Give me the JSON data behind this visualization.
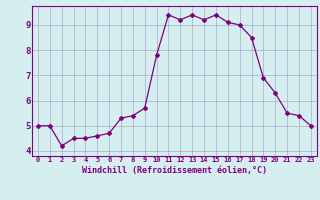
{
  "x": [
    0,
    1,
    2,
    3,
    4,
    5,
    6,
    7,
    8,
    9,
    10,
    11,
    12,
    13,
    14,
    15,
    16,
    17,
    18,
    19,
    20,
    21,
    22,
    23
  ],
  "y": [
    5.0,
    5.0,
    4.2,
    4.5,
    4.5,
    4.6,
    4.7,
    5.3,
    5.4,
    5.7,
    7.8,
    9.4,
    9.2,
    9.4,
    9.2,
    9.4,
    9.1,
    9.0,
    8.5,
    6.9,
    6.3,
    5.5,
    5.4,
    5.0
  ],
  "line_color": "#800080",
  "marker": "D",
  "marker_size": 2,
  "bg_color": "#d5eef0",
  "grid_color": "#aaaacc",
  "xlabel": "Windchill (Refroidissement éolien,°C)",
  "xlabel_color": "#800080",
  "tick_color": "#800080",
  "ylim": [
    3.8,
    9.75
  ],
  "xlim": [
    -0.5,
    23.5
  ],
  "yticks": [
    4,
    5,
    6,
    7,
    8,
    9
  ],
  "xticks": [
    0,
    1,
    2,
    3,
    4,
    5,
    6,
    7,
    8,
    9,
    10,
    11,
    12,
    13,
    14,
    15,
    16,
    17,
    18,
    19,
    20,
    21,
    22,
    23
  ],
  "xtick_labels": [
    "0",
    "1",
    "2",
    "3",
    "4",
    "5",
    "6",
    "7",
    "8",
    "9",
    "10",
    "11",
    "12",
    "13",
    "14",
    "15",
    "16",
    "17",
    "18",
    "19",
    "20",
    "21",
    "22",
    "23"
  ],
  "spine_color": "#800080"
}
